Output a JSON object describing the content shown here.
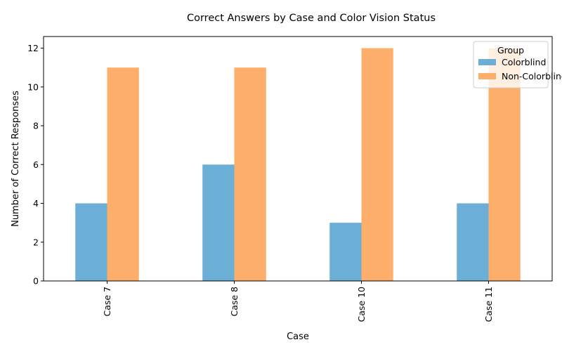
{
  "chart_data": {
    "type": "bar",
    "title": "Correct Answers by Case and Color Vision Status",
    "xlabel": "Case",
    "ylabel": "Number of Correct Responses",
    "categories": [
      "Case 7",
      "Case 8",
      "Case 10",
      "Case 11"
    ],
    "series": [
      {
        "name": "Colorblind",
        "values": [
          4,
          6,
          3,
          4
        ],
        "color": "#6baed6"
      },
      {
        "name": "Non-Colorblind",
        "values": [
          11,
          11,
          12,
          12
        ],
        "color": "#fdae6b"
      }
    ],
    "yticks": [
      0,
      2,
      4,
      6,
      8,
      10,
      12
    ],
    "ylim": [
      0,
      12.6
    ],
    "grid": false,
    "legend": {
      "title": "Group",
      "position": "top-right"
    }
  }
}
